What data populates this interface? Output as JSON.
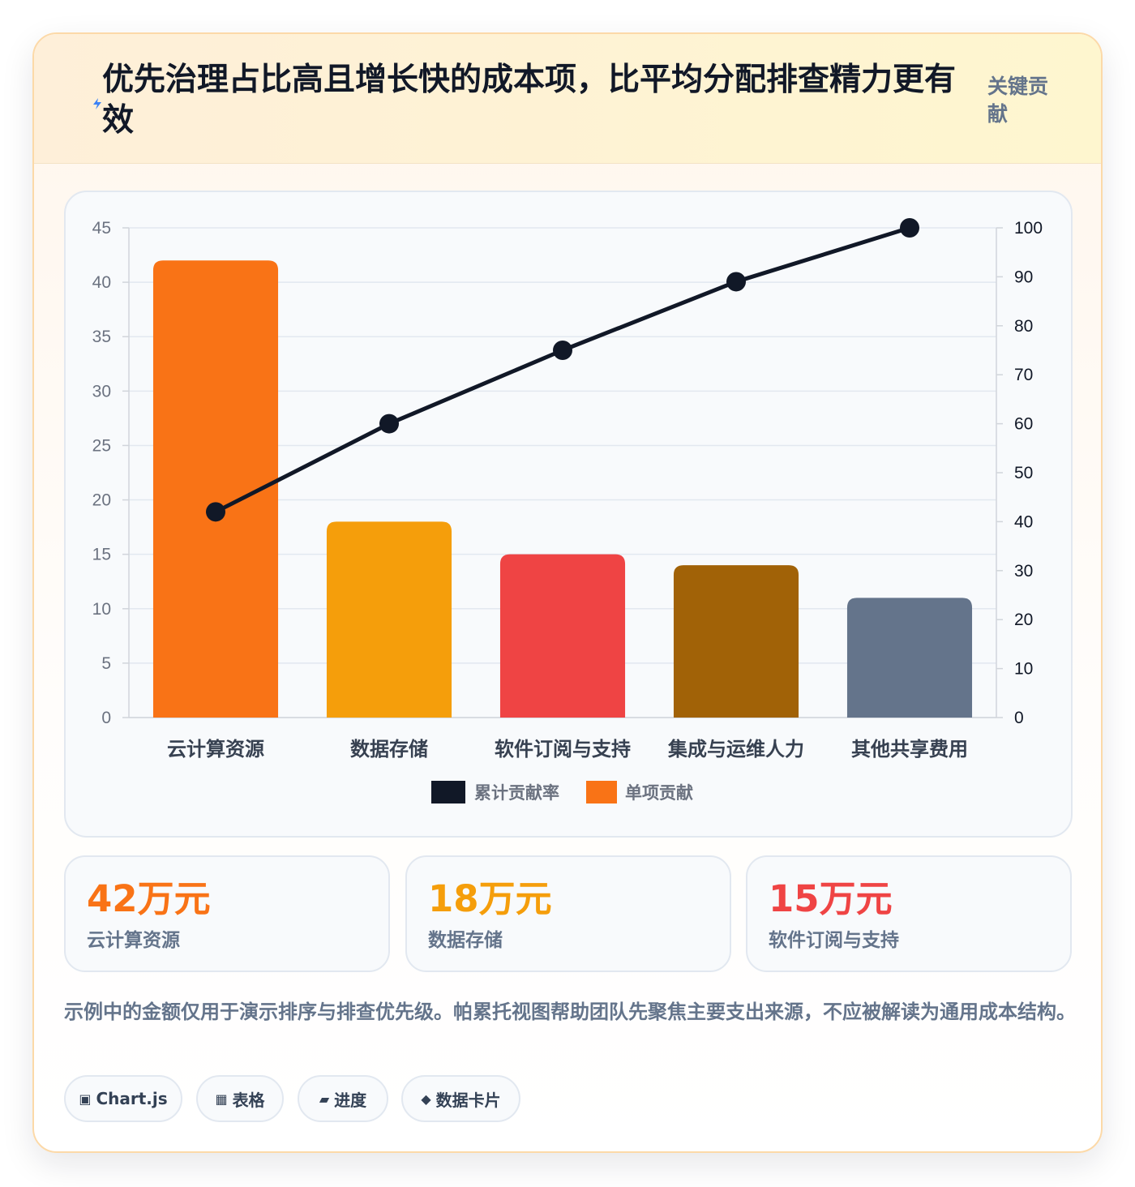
{
  "header": {
    "title": "优先治理占比高且增长快的成本项，比平均分配排查精力更有效",
    "tag": "关键贡献",
    "icon": "bolt-icon"
  },
  "chart_data": {
    "type": "bar",
    "categories": [
      "云计算资源",
      "数据存储",
      "软件订阅与支持",
      "集成与运维人力",
      "其他共享费用"
    ],
    "series": [
      {
        "name": "单项贡献",
        "type": "bar",
        "axis": "left",
        "values": [
          42,
          18,
          15,
          14,
          11
        ],
        "colors": [
          "#f97316",
          "#f59e0b",
          "#ef4444",
          "#a16207",
          "#64748b"
        ]
      },
      {
        "name": "累计贡献率",
        "type": "line",
        "axis": "right",
        "values": [
          42,
          60,
          75,
          89,
          100
        ],
        "color": "#111827"
      }
    ],
    "y_left": {
      "min": 0,
      "max": 45,
      "ticks": [
        0,
        5,
        10,
        15,
        20,
        25,
        30,
        35,
        40,
        45
      ]
    },
    "y_right": {
      "min": 0,
      "max": 100,
      "ticks": [
        0,
        10,
        20,
        30,
        40,
        50,
        60,
        70,
        80,
        90,
        100
      ]
    },
    "grid": true,
    "legend": [
      {
        "label": "累计贡献率",
        "color": "#111827"
      },
      {
        "label": "单项贡献",
        "color": "#f97316"
      }
    ],
    "legend_position": "bottom"
  },
  "stats": [
    {
      "value": "42万元",
      "label": "云计算资源",
      "color": "#f97316"
    },
    {
      "value": "18万元",
      "label": "数据存储",
      "color": "#f59e0b"
    },
    {
      "value": "15万元",
      "label": "软件订阅与支持",
      "color": "#ef4444"
    }
  ],
  "note": "示例中的金额仅用于演示排序与排查优先级。帕累托视图帮助团队先聚焦主要支出来源，不应被解读为通用成本结构。",
  "chips": [
    {
      "icon": "chart-icon",
      "glyph": "▣",
      "label": "Chart.js"
    },
    {
      "icon": "table-icon",
      "glyph": "▦",
      "label": "表格"
    },
    {
      "icon": "progress-icon",
      "glyph": "▰",
      "label": "进度"
    },
    {
      "icon": "card-icon",
      "glyph": "◆",
      "label": "数据卡片"
    }
  ]
}
